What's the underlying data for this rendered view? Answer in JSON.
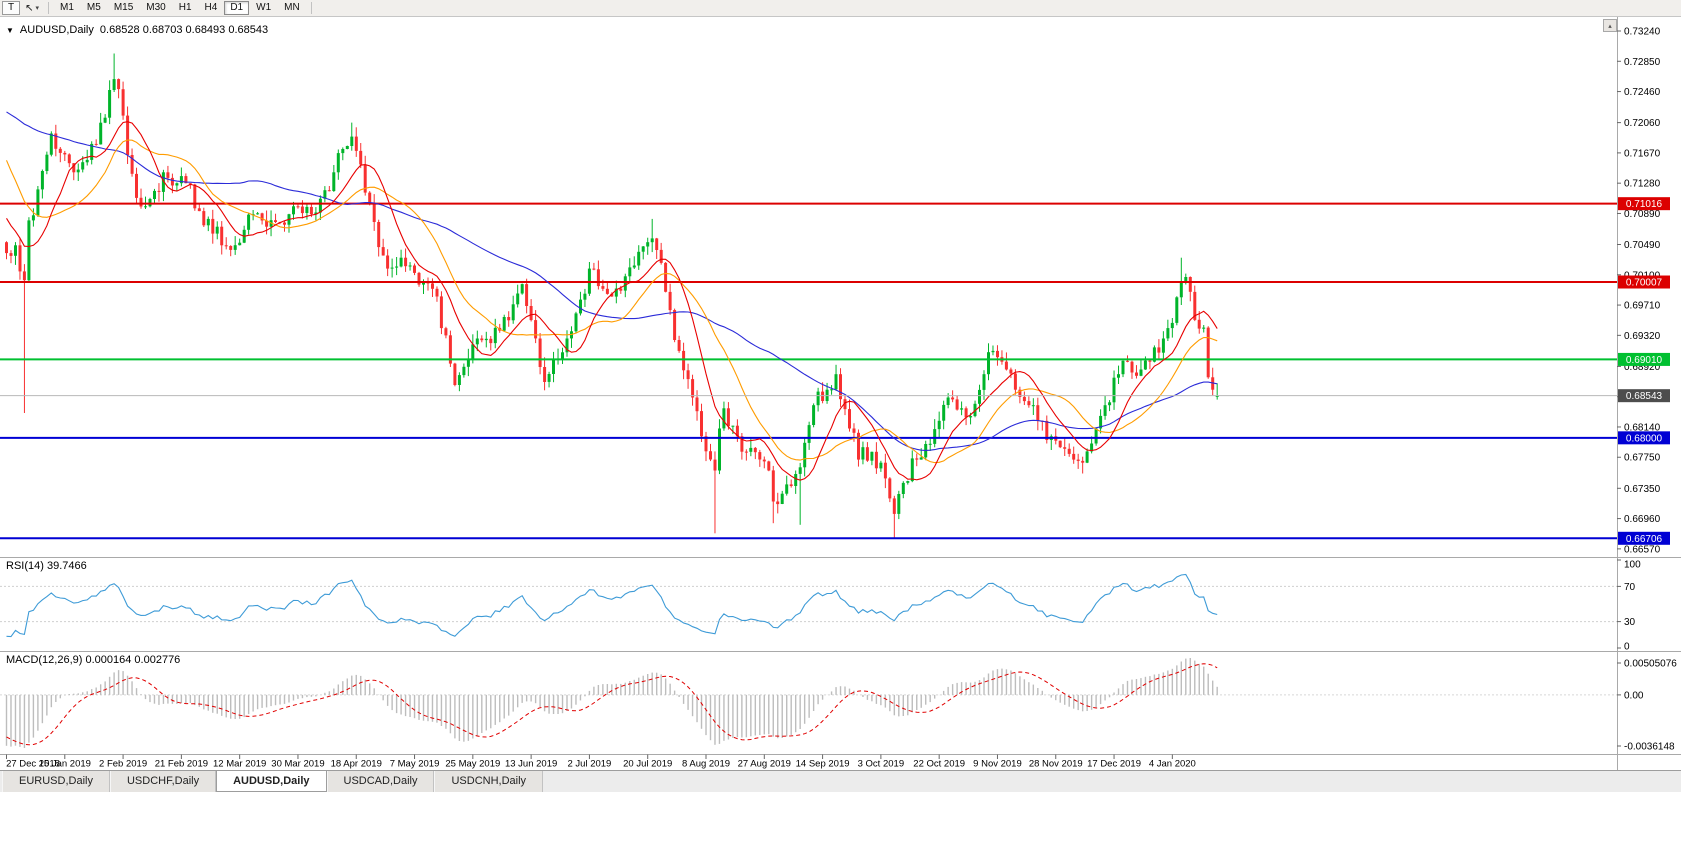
{
  "toolbar": {
    "chart_type_label": "T",
    "cursor_icon": "↖",
    "dropdown_icon": "▾",
    "timeframes": [
      {
        "label": "M1",
        "active": false
      },
      {
        "label": "M5",
        "active": false
      },
      {
        "label": "M15",
        "active": false
      },
      {
        "label": "M30",
        "active": false
      },
      {
        "label": "H1",
        "active": false
      },
      {
        "label": "H4",
        "active": false
      },
      {
        "label": "D1",
        "active": true
      },
      {
        "label": "W1",
        "active": false
      },
      {
        "label": "MN",
        "active": false
      }
    ]
  },
  "chart": {
    "dropdown_icon": "▼",
    "title": "AUDUSD,Daily",
    "ohlc": "0.68528 0.68703 0.68493 0.68543",
    "scale_button_icon": "▴"
  },
  "tabs": [
    {
      "label": "EURUSD,Daily",
      "active": false
    },
    {
      "label": "USDCHF,Daily",
      "active": false
    },
    {
      "label": "AUDUSD,Daily",
      "active": true
    },
    {
      "label": "USDCAD,Daily",
      "active": false
    },
    {
      "label": "USDCNH,Daily",
      "active": false
    }
  ],
  "chart_data": {
    "type": "candlestick",
    "symbol": "AUDUSD",
    "timeframe": "Daily",
    "last_ohlc": {
      "open": 0.68528,
      "high": 0.68703,
      "low": 0.68493,
      "close": 0.68543
    },
    "ylim": [
      0.66465,
      0.73407
    ],
    "price_axis": [
      "0.73240",
      "0.72850",
      "0.72460",
      "0.72060",
      "0.71670",
      "0.71280",
      "0.70890",
      "0.70490",
      "0.70100",
      "0.69710",
      "0.69320",
      "0.68920",
      "0.68530",
      "0.68140",
      "0.67750",
      "0.67350",
      "0.66960",
      "0.66570"
    ],
    "time_axis": [
      "27 Dec 2018",
      "15 Jan 2019",
      "2 Feb 2019",
      "21 Feb 2019",
      "12 Mar 2019",
      "30 Mar 2019",
      "18 Apr 2019",
      "7 May 2019",
      "25 May 2019",
      "13 Jun 2019",
      "2 Jul 2019",
      "20 Jul 2019",
      "8 Aug 2019",
      "27 Aug 2019",
      "14 Sep 2019",
      "3 Oct 2019",
      "22 Oct 2019",
      "9 Nov 2019",
      "28 Nov 2019",
      "17 Dec 2019",
      "4 Jan 2020"
    ],
    "bars_per_label": 13,
    "hlines": [
      {
        "price": 0.71016,
        "label": "0.71016",
        "color": "#dc0000"
      },
      {
        "price": 0.70007,
        "label": "0.70007",
        "color": "#dc0000"
      },
      {
        "price": 0.6901,
        "label": "0.69010",
        "color": "#00c030"
      },
      {
        "price": 0.68,
        "label": "0.68000",
        "color": "#0000d4"
      },
      {
        "price": 0.66706,
        "label": "0.66706",
        "color": "#0000d4"
      }
    ],
    "current_price": {
      "value": 0.68543,
      "label": "0.68543",
      "line_color": "#b8b8b8",
      "badge_color": "#4d4d4d"
    },
    "moving_averages": [
      {
        "period": 50,
        "color": "#2b2bd8"
      },
      {
        "period": 20,
        "color": "#ff9c00"
      },
      {
        "period": 10,
        "color": "#e80000"
      }
    ],
    "candles": {
      "count": 271,
      "up_color": "#00b42a",
      "down_color": "#f83030",
      "pre_anchors": [
        [
          -60,
          0.7248
        ],
        [
          -50,
          0.721
        ],
        [
          -40,
          0.7258
        ],
        [
          -33,
          0.7222
        ],
        [
          -28,
          0.728
        ],
        [
          -22,
          0.7348
        ],
        [
          -18,
          0.73
        ],
        [
          -12,
          0.718
        ],
        [
          -8,
          0.712
        ],
        [
          -4,
          0.7072
        ],
        [
          -1,
          0.7052
        ]
      ],
      "anchors": [
        [
          0,
          0.7038
        ],
        [
          2,
          0.7048
        ],
        [
          4,
          0.7003
        ],
        [
          5,
          0.708
        ],
        [
          7,
          0.712
        ],
        [
          10,
          0.7192
        ],
        [
          13,
          0.7165
        ],
        [
          15,
          0.7142
        ],
        [
          18,
          0.7158
        ],
        [
          20,
          0.7178
        ],
        [
          23,
          0.7248
        ],
        [
          24,
          0.7262
        ],
        [
          26,
          0.7215
        ],
        [
          28,
          0.714
        ],
        [
          30,
          0.7098
        ],
        [
          33,
          0.7118
        ],
        [
          35,
          0.7142
        ],
        [
          38,
          0.7128
        ],
        [
          40,
          0.7128
        ],
        [
          43,
          0.7092
        ],
        [
          45,
          0.7082
        ],
        [
          48,
          0.7048
        ],
        [
          50,
          0.7042
        ],
        [
          53,
          0.7068
        ],
        [
          55,
          0.7088
        ],
        [
          58,
          0.7072
        ],
        [
          60,
          0.7078
        ],
        [
          63,
          0.7088
        ],
        [
          65,
          0.7098
        ],
        [
          68,
          0.7088
        ],
        [
          70,
          0.7108
        ],
        [
          73,
          0.7142
        ],
        [
          75,
          0.7172
        ],
        [
          77,
          0.7188
        ],
        [
          79,
          0.7152
        ],
        [
          82,
          0.7078
        ],
        [
          85,
          0.7018
        ],
        [
          88,
          0.7032
        ],
        [
          90,
          0.7022
        ],
        [
          93,
          0.7002
        ],
        [
          95,
          0.6992
        ],
        [
          98,
          0.6932
        ],
        [
          100,
          0.6868
        ],
        [
          103,
          0.6902
        ],
        [
          105,
          0.6928
        ],
        [
          108,
          0.6922
        ],
        [
          110,
          0.6938
        ],
        [
          113,
          0.6972
        ],
        [
          115,
          0.6998
        ],
        [
          118,
          0.6928
        ],
        [
          120,
          0.6872
        ],
        [
          123,
          0.6902
        ],
        [
          125,
          0.6928
        ],
        [
          128,
          0.6978
        ],
        [
          130,
          0.7018
        ],
        [
          133,
          0.6992
        ],
        [
          135,
          0.6982
        ],
        [
          138,
          0.7008
        ],
        [
          140,
          0.7022
        ],
        [
          143,
          0.7052
        ],
        [
          145,
          0.7042
        ],
        [
          147,
          0.6988
        ],
        [
          150,
          0.6912
        ],
        [
          153,
          0.6852
        ],
        [
          155,
          0.6802
        ],
        [
          157,
          0.6772
        ],
        [
          158,
          0.6758
        ],
        [
          160,
          0.6838
        ],
        [
          163,
          0.6802
        ],
        [
          165,
          0.6782
        ],
        [
          168,
          0.6772
        ],
        [
          170,
          0.6758
        ],
        [
          171,
          0.6718
        ],
        [
          173,
          0.6728
        ],
        [
          175,
          0.6738
        ],
        [
          177,
          0.6762
        ],
        [
          180,
          0.6842
        ],
        [
          183,
          0.6862
        ],
        [
          185,
          0.6882
        ],
        [
          188,
          0.6812
        ],
        [
          190,
          0.6772
        ],
        [
          193,
          0.6782
        ],
        [
          195,
          0.6768
        ],
        [
          197,
          0.6722
        ],
        [
          198,
          0.6702
        ],
        [
          200,
          0.6742
        ],
        [
          203,
          0.6772
        ],
        [
          205,
          0.6792
        ],
        [
          208,
          0.6822
        ],
        [
          210,
          0.6852
        ],
        [
          213,
          0.6838
        ],
        [
          215,
          0.6828
        ],
        [
          218,
          0.6882
        ],
        [
          220,
          0.6912
        ],
        [
          223,
          0.6888
        ],
        [
          225,
          0.6862
        ],
        [
          228,
          0.6842
        ],
        [
          230,
          0.6822
        ],
        [
          233,
          0.6802
        ],
        [
          235,
          0.6788
        ],
        [
          238,
          0.6772
        ],
        [
          240,
          0.6768
        ],
        [
          243,
          0.6812
        ],
        [
          245,
          0.6842
        ],
        [
          248,
          0.6882
        ],
        [
          250,
          0.6898
        ],
        [
          253,
          0.6888
        ],
        [
          255,
          0.6898
        ],
        [
          258,
          0.6928
        ],
        [
          260,
          0.6948
        ],
        [
          262,
          0.7002
        ],
        [
          264,
          0.6988
        ],
        [
          265,
          0.6952
        ],
        [
          267,
          0.6942
        ],
        [
          268,
          0.6878
        ],
        [
          269,
          0.6862
        ],
        [
          270,
          0.68543
        ]
      ],
      "special_highs": {
        "24": 0.7295,
        "77": 0.7206,
        "144": 0.7082,
        "262": 0.7032
      },
      "special_lows": {
        "4": 0.6832,
        "158": 0.6677,
        "171": 0.669,
        "177": 0.6688,
        "198": 0.667,
        "240": 0.6754
      }
    },
    "rsi_panel": {
      "label": "RSI(14)",
      "value": "39.7466",
      "period": 14,
      "levels": [
        "100",
        "70",
        "30",
        "0"
      ],
      "level_values": [
        100,
        70,
        30,
        0
      ],
      "line_color": "#3e9bd7"
    },
    "macd_panel": {
      "label": "MACD(12,26,9)",
      "values": "0.000164 0.002776",
      "fast": 12,
      "slow": 26,
      "signal": 9,
      "axis_top": "0.00505076",
      "axis_zero": "0.00",
      "axis_bottom": "-0.0036148",
      "hist_color": "#bdbdbd",
      "signal_color": "#e00000"
    }
  }
}
